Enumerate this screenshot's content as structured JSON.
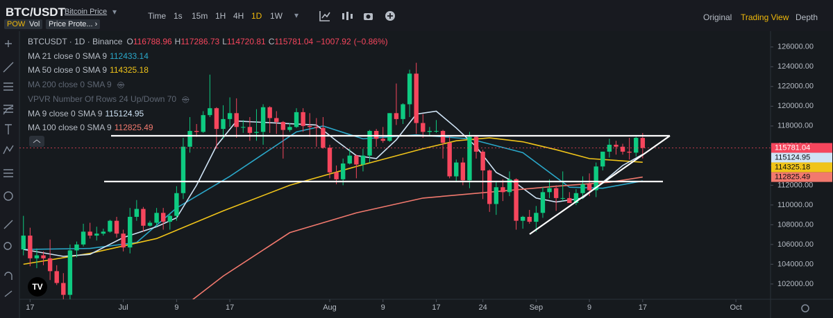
{
  "ui": {
    "symbol": "BTC/USDT",
    "symbol_link": "Bitcoin Price",
    "intervals": [
      "Time",
      "1s",
      "15m",
      "1H",
      "4H",
      "1D",
      "1W"
    ],
    "active_interval": "1D",
    "views": [
      "Original",
      "Trading View",
      "Depth"
    ],
    "active_view": "Trading View",
    "badges": [
      "POW",
      "Vol",
      "Price Prote... ›"
    ]
  },
  "chart_data": {
    "type": "candlestick",
    "symbol_line": "BTCUSDT · 1D · Binance",
    "ohlc_labels": [
      "O",
      "H",
      "L",
      "C"
    ],
    "change": "−1007.92",
    "change_pct": "(−0.86%)",
    "up_color": "#0ecb81",
    "down_color": "#f6465d",
    "open": [
      105500,
      106900,
      104600,
      104900,
      104600,
      103300,
      102100,
      100900,
      105400,
      106000,
      107300,
      106900,
      107100,
      107300,
      108400,
      107100,
      105700,
      108800,
      109600,
      107900,
      108200,
      109200,
      108300,
      108900,
      111200,
      115900,
      117500,
      117400,
      119100,
      119800,
      117700,
      118700,
      119300,
      117900,
      117900,
      117300,
      117400,
      119900,
      118800,
      118400,
      117600,
      117900,
      119400,
      118000,
      117900,
      117800,
      115800,
      113300,
      112600,
      114200,
      115000,
      114100,
      115000,
      117500,
      116700,
      116500,
      119300,
      118700,
      120200,
      123300,
      118300,
      117400,
      117500,
      117500,
      116300,
      112900,
      114300,
      112500,
      116900,
      115400,
      113500,
      110100,
      111800,
      111300,
      112600,
      108400,
      108800,
      108300,
      109200,
      111300,
      111700,
      110700,
      110700,
      110200,
      111200,
      112100,
      111500,
      113900,
      115400,
      116100,
      115900,
      115400,
      115300,
      116788.96
    ],
    "high": [
      108900,
      107700,
      105600,
      105300,
      106500,
      103900,
      103100,
      106000,
      106300,
      108100,
      108200,
      107800,
      107600,
      108500,
      108800,
      107500,
      109700,
      110500,
      109800,
      108400,
      109700,
      109700,
      109200,
      111900,
      116800,
      118900,
      118200,
      119500,
      123200,
      119900,
      120100,
      120900,
      120800,
      118600,
      118900,
      119700,
      120200,
      120000,
      119500,
      118500,
      118300,
      119800,
      119800,
      119300,
      118800,
      118900,
      116100,
      114000,
      114700,
      115700,
      115100,
      115700,
      117600,
      117700,
      117900,
      119300,
      122300,
      120300,
      123700,
      124400,
      119200,
      117900,
      118600,
      117600,
      116900,
      114600,
      114800,
      117400,
      117000,
      115600,
      113600,
      112400,
      112600,
      113400,
      112700,
      108900,
      109500,
      109900,
      111800,
      112600,
      112000,
      113400,
      111300,
      111600,
      112900,
      113200,
      114300,
      115400,
      116700,
      116500,
      116200,
      116800,
      116900,
      117286.73
    ],
    "low": [
      104900,
      103800,
      103600,
      103900,
      102400,
      101900,
      100400,
      100400,
      104700,
      105800,
      106600,
      106400,
      106900,
      107200,
      106700,
      105300,
      105100,
      108400,
      107300,
      107800,
      107800,
      107500,
      107500,
      108400,
      110600,
      115300,
      116900,
      117300,
      118900,
      115700,
      116700,
      117900,
      116800,
      117300,
      116500,
      116500,
      116100,
      117300,
      117200,
      114700,
      117400,
      117800,
      117400,
      116900,
      115900,
      115700,
      112700,
      112100,
      112000,
      114100,
      112700,
      113400,
      114300,
      115900,
      116300,
      116400,
      118100,
      118200,
      118900,
      117200,
      116800,
      117000,
      117300,
      114700,
      112700,
      112400,
      112000,
      111700,
      114700,
      110600,
      109300,
      109000,
      110400,
      110900,
      107500,
      107600,
      108100,
      107300,
      108700,
      110700,
      109400,
      110400,
      110200,
      110000,
      110600,
      110900,
      110800,
      113500,
      114800,
      115100,
      115100,
      114600,
      114900,
      114720.81
    ],
    "close": [
      106900,
      104600,
      104900,
      104600,
      103300,
      102100,
      100900,
      105400,
      106000,
      107300,
      106900,
      107100,
      107300,
      108400,
      107100,
      105700,
      108800,
      109600,
      107900,
      108200,
      109200,
      108300,
      108900,
      111200,
      115900,
      117500,
      117400,
      119100,
      119800,
      117700,
      118700,
      119300,
      117900,
      117900,
      117300,
      117400,
      119900,
      118800,
      118400,
      117600,
      117900,
      119400,
      118000,
      117900,
      117800,
      115800,
      113300,
      112600,
      114200,
      115000,
      114100,
      115000,
      117500,
      116700,
      116500,
      119300,
      118700,
      120200,
      123300,
      118300,
      117400,
      117500,
      117500,
      116300,
      112900,
      114300,
      112500,
      116900,
      115400,
      113500,
      110100,
      111800,
      111300,
      112600,
      108400,
      108800,
      108300,
      109200,
      111300,
      111700,
      110700,
      110700,
      110200,
      111200,
      112100,
      111500,
      113900,
      115400,
      116100,
      115900,
      115400,
      115300,
      116800,
      115781.04
    ],
    "series": [
      {
        "name": "MA 21 close 0 SMA 9",
        "color": "#2aa7c9",
        "x": [
          0,
          10,
          17,
          23,
          31,
          41,
          45,
          51,
          59,
          67,
          75,
          82,
          87,
          93
        ],
        "values": [
          105500,
          105600,
          106200,
          109700,
          112900,
          117400,
          118000,
          116700,
          117100,
          116700,
          115300,
          111800,
          111700,
          112433.14
        ]
      },
      {
        "name": "MA 50 close 0 SMA 9",
        "color": "#f0c419",
        "x": [
          0,
          10,
          20,
          30,
          40,
          50,
          60,
          65,
          70,
          75,
          80,
          85,
          93
        ],
        "values": [
          104000,
          105100,
          106600,
          109400,
          112000,
          113900,
          115700,
          116500,
          116800,
          116400,
          115600,
          114700,
          114325.18
        ]
      },
      {
        "name": "MA 200 close 0 SMA 9",
        "hidden": true
      },
      {
        "name": "VPVR Number Of Rows 24 Up/Down 70",
        "hidden": true
      },
      {
        "name": "MA 9 close 0 SMA 9",
        "color": "#cfe3f5",
        "x": [
          0,
          6,
          10,
          15,
          20,
          23,
          26,
          29,
          32,
          38,
          44,
          47,
          50,
          53,
          56,
          59,
          62,
          65,
          68,
          71,
          74,
          77,
          80,
          84,
          87,
          90,
          93
        ],
        "values": [
          105500,
          104800,
          105000,
          106700,
          107800,
          108700,
          112000,
          116000,
          118500,
          118300,
          118100,
          116500,
          115000,
          114700,
          116600,
          119200,
          119500,
          117800,
          115900,
          113300,
          112200,
          110700,
          110300,
          110700,
          112300,
          114000,
          115124.95
        ]
      },
      {
        "name": "MA 100 close 0 SMA 9",
        "color": "#f2796e",
        "x": [
          25,
          30,
          40,
          50,
          60,
          70,
          80,
          88,
          93
        ],
        "values": [
          100200,
          102800,
          107200,
          109200,
          110700,
          111300,
          111900,
          112300,
          112825.49
        ]
      }
    ],
    "xlim": [
      -0.6,
      112.2
    ],
    "xticks": [
      {
        "value": 1,
        "label": "17"
      },
      {
        "value": 15,
        "label": "Jul"
      },
      {
        "value": 23,
        "label": "9"
      },
      {
        "value": 31,
        "label": "17"
      },
      {
        "value": 46,
        "label": "Aug"
      },
      {
        "value": 54,
        "label": "9"
      },
      {
        "value": 62,
        "label": "17"
      },
      {
        "value": 69,
        "label": "24"
      },
      {
        "value": 77,
        "label": "Sep"
      },
      {
        "value": 85,
        "label": "9"
      },
      {
        "value": 93,
        "label": "17"
      },
      {
        "value": 107,
        "label": "Oct"
      }
    ],
    "ylim": [
      100450,
      127600
    ],
    "yticks": [
      {
        "value": 102000,
        "label": "102000.00"
      },
      {
        "value": 104000,
        "label": "104000.00"
      },
      {
        "value": 106000,
        "label": "106000.00"
      },
      {
        "value": 108000,
        "label": "108000.00"
      },
      {
        "value": 110000,
        "label": "110000.00"
      },
      {
        "value": 112000,
        "label": "112000.00"
      },
      {
        "value": 114000,
        "label": "114000.00"
      },
      {
        "value": 116000,
        "label": "116000.00"
      },
      {
        "value": 118000,
        "label": "118000.00"
      },
      {
        "value": 120000,
        "label": "120000.00"
      },
      {
        "value": 122000,
        "label": "122000.00"
      },
      {
        "value": 124000,
        "label": "124000.00"
      },
      {
        "value": 126000,
        "label": "126000.00"
      }
    ],
    "grid": false
  }
}
